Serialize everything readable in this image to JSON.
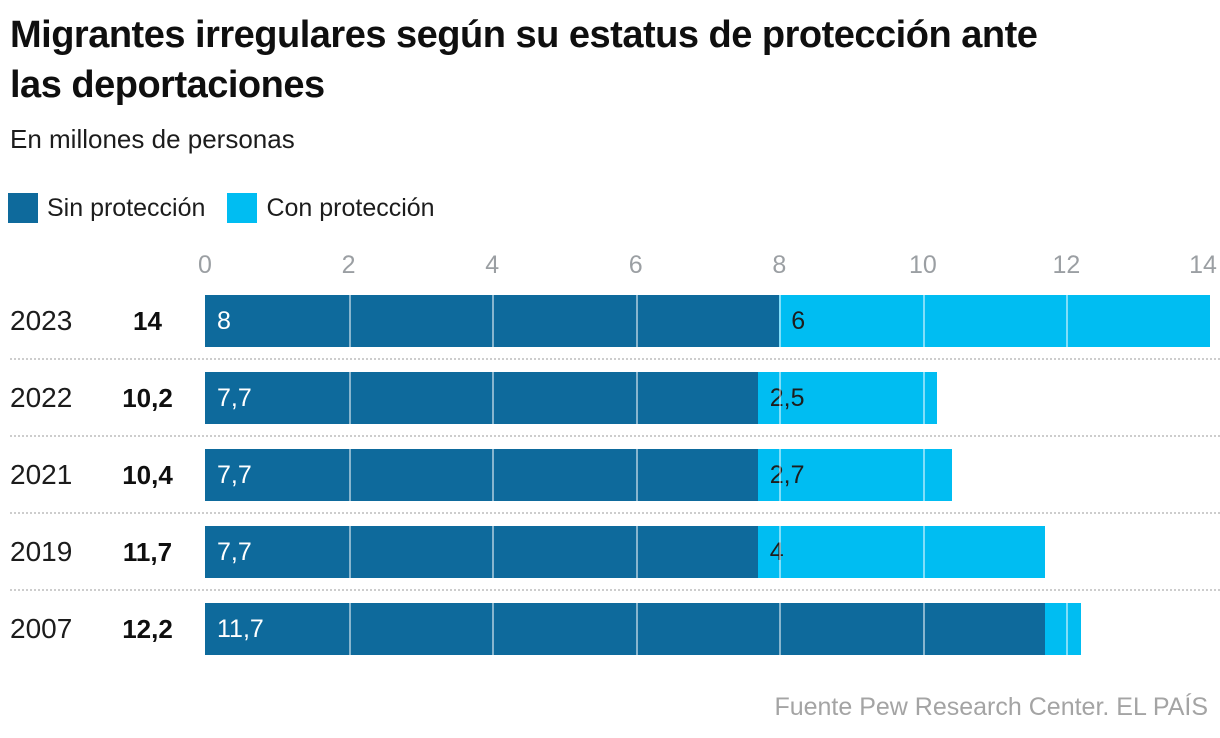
{
  "title": {
    "full": "Migrantes irregulares según su estatus de protección ante las deportaciones",
    "lines": [
      "Migrantes irregulares según su estatus de protección ante",
      "las deportaciones"
    ]
  },
  "subtitle": "En millones de personas",
  "legend": [
    {
      "label": "Sin protección",
      "color": "#0e6a9c"
    },
    {
      "label": "Con protección",
      "color": "#00bdf2"
    }
  ],
  "footer": {
    "text": "Fuente Pew Research Center. EL PAÍS"
  },
  "chart_data": {
    "type": "bar",
    "orientation": "horizontal",
    "stacked": true,
    "title": "Migrantes irregulares según su estatus de protección ante las deportaciones",
    "units": "En millones de personas",
    "categories": [
      "2023",
      "2022",
      "2021",
      "2019",
      "2007"
    ],
    "totals": [
      14,
      10.2,
      10.4,
      11.7,
      12.2
    ],
    "totals_display": [
      "14",
      "10,2",
      "10,4",
      "11,7",
      "12,2"
    ],
    "series": [
      {
        "name": "Sin protección",
        "color": "#0e6a9c",
        "label_color": "#ffffff",
        "values": [
          8,
          7.7,
          7.7,
          7.7,
          11.7
        ],
        "labels": [
          "8",
          "7,7",
          "7,7",
          "7,7",
          "11,7"
        ]
      },
      {
        "name": "Con protección",
        "color": "#00bdf2",
        "label_color": "#1d1d1d",
        "values": [
          6,
          2.5,
          2.7,
          4,
          0.5
        ],
        "labels": [
          "6",
          "2,5",
          "2,7",
          "4",
          ""
        ]
      }
    ],
    "x_ticks": [
      0,
      2,
      4,
      6,
      8,
      10,
      12,
      14
    ],
    "xlim": [
      0,
      14
    ],
    "grid": "vertical-white-lines-over-bars",
    "legend_position": "top-left",
    "row_separator": "dotted",
    "source": "Fuente Pew Research Center. EL PAÍS"
  }
}
